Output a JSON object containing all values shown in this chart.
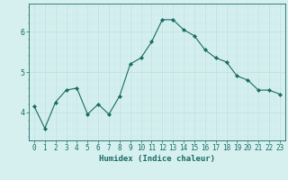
{
  "x": [
    0,
    1,
    2,
    3,
    4,
    5,
    6,
    7,
    8,
    9,
    10,
    11,
    12,
    13,
    14,
    15,
    16,
    17,
    18,
    19,
    20,
    21,
    22,
    23
  ],
  "y": [
    4.15,
    3.6,
    4.25,
    4.55,
    4.6,
    3.95,
    4.2,
    3.95,
    4.4,
    5.2,
    5.35,
    5.75,
    6.3,
    6.3,
    6.05,
    5.9,
    5.55,
    5.35,
    5.25,
    4.9,
    4.8,
    4.55,
    4.55,
    4.45
  ],
  "line_color": "#1a6b63",
  "marker": "D",
  "marker_size": 2.2,
  "bg_color": "#d6f0f0",
  "grid_color_major": "#c0dede",
  "grid_color_minor": "#c8e8e8",
  "xlabel": "Humidex (Indice chaleur)",
  "xlabel_fontsize": 6.5,
  "ylabel_ticks": [
    4,
    5,
    6
  ],
  "xlim": [
    -0.5,
    23.5
  ],
  "ylim": [
    3.3,
    6.7
  ],
  "tick_color": "#1a6b63",
  "tick_fontsize": 5.5
}
